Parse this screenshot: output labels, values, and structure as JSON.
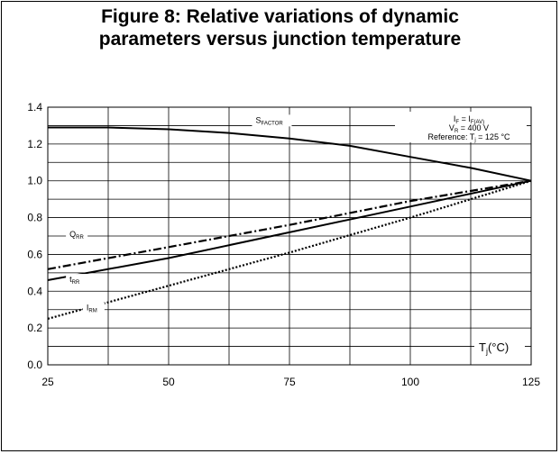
{
  "figure": {
    "title_line1": "Figure 8: Relative variations of dynamic",
    "title_line2": "parameters versus junction temperature"
  },
  "chart_data": {
    "type": "line",
    "title": "Figure 8: Relative variations of dynamic parameters versus junction temperature",
    "xlabel": "Tj(°C)",
    "ylabel": "",
    "xlim": [
      25,
      125
    ],
    "ylim": [
      0,
      1.4
    ],
    "x_ticks": [
      "25",
      "50",
      "75",
      "100",
      "125"
    ],
    "y_ticks": [
      "0.0",
      "0.2",
      "0.4",
      "0.6",
      "0.8",
      "1.0",
      "1.2",
      "1.4"
    ],
    "grid": true,
    "series": [
      {
        "name": "SFACTOR",
        "name_main": "S",
        "name_sub": "FACTOR",
        "style": "solid",
        "color": "#000000",
        "x": [
          25,
          37.5,
          50,
          62.5,
          75,
          87.5,
          100,
          112.5,
          125
        ],
        "y": [
          1.29,
          1.29,
          1.28,
          1.26,
          1.23,
          1.19,
          1.13,
          1.07,
          1.0
        ]
      },
      {
        "name": "QRR",
        "name_main": "Q",
        "name_sub": "RR",
        "style": "dashdot",
        "color": "#000000",
        "x": [
          25,
          50,
          75,
          100,
          125
        ],
        "y": [
          0.52,
          0.64,
          0.76,
          0.89,
          1.0
        ]
      },
      {
        "name": "tRR",
        "name_main": "t",
        "name_sub": "RR",
        "style": "solid",
        "color": "#000000",
        "x": [
          25,
          50,
          75,
          100,
          125
        ],
        "y": [
          0.46,
          0.58,
          0.72,
          0.86,
          1.0
        ]
      },
      {
        "name": "IRM",
        "name_main": "I",
        "name_sub": "RM",
        "style": "dotted",
        "color": "#000000",
        "x": [
          25,
          50,
          75,
          100,
          125
        ],
        "y": [
          0.25,
          0.43,
          0.61,
          0.8,
          1.0
        ]
      }
    ],
    "annotations": {
      "conditions_line1": "IF = IF(AV)",
      "conditions_line2": "VR = 400 V",
      "conditions_line3": "Reference: Tj = 125 °C",
      "xlabel_main": "T",
      "xlabel_sub": "j",
      "xlabel_rest": "(°C)"
    }
  }
}
